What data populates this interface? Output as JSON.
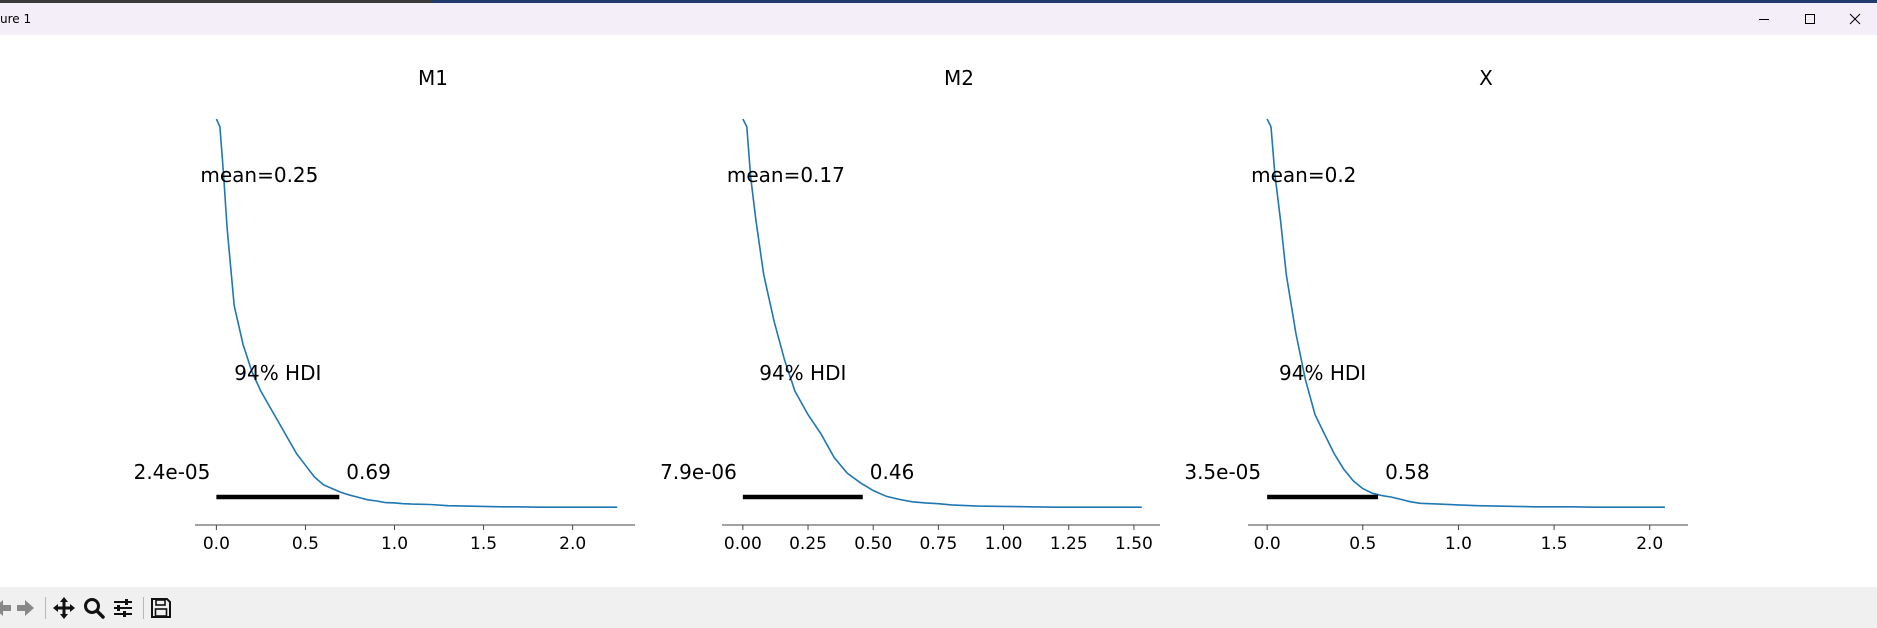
{
  "window": {
    "title": "ure 1",
    "icons": {
      "minimize": "minimize-icon",
      "maximize": "maximize-icon",
      "close": "close-icon"
    }
  },
  "toolbar": {
    "buttons": [
      {
        "name": "back-button",
        "icon": "arrow-left-icon"
      },
      {
        "name": "forward-button",
        "icon": "arrow-right-icon"
      },
      {
        "name": "pan-button",
        "icon": "move-icon"
      },
      {
        "name": "zoom-button",
        "icon": "magnifier-icon"
      },
      {
        "name": "configure-button",
        "icon": "sliders-icon"
      },
      {
        "name": "save-button",
        "icon": "floppy-disk-icon"
      }
    ]
  },
  "colors": {
    "line": "#1f77b4",
    "hdi": "#000000",
    "axis": "#444444"
  },
  "chart_data": [
    {
      "type": "line",
      "title": "M1",
      "xlim": [
        -0.12,
        2.35
      ],
      "ticks": [
        0.0,
        0.5,
        1.0,
        1.5,
        2.0
      ],
      "tick_labels": [
        "0.0",
        "0.5",
        "1.0",
        "1.5",
        "2.0"
      ],
      "mean_label": "mean=0.25",
      "hdi_label": "94% HDI",
      "hdi": [
        0.0,
        0.69
      ],
      "hdi_low_label": "2.4e-05",
      "hdi_high_label": "0.69",
      "x": [
        0.0,
        0.02,
        0.04,
        0.06,
        0.1,
        0.15,
        0.2,
        0.25,
        0.3,
        0.35,
        0.4,
        0.45,
        0.5,
        0.55,
        0.6,
        0.65,
        0.7,
        0.75,
        0.8,
        0.85,
        0.9,
        0.95,
        1.0,
        1.05,
        1.1,
        1.2,
        1.3,
        1.4,
        1.5,
        1.6,
        1.7,
        1.8,
        1.9,
        2.0,
        2.1,
        2.25
      ],
      "y": [
        1.0,
        0.98,
        0.86,
        0.72,
        0.52,
        0.42,
        0.35,
        0.3,
        0.26,
        0.22,
        0.18,
        0.14,
        0.11,
        0.08,
        0.06,
        0.05,
        0.04,
        0.033,
        0.027,
        0.021,
        0.018,
        0.014,
        0.013,
        0.011,
        0.01,
        0.009,
        0.006,
        0.005,
        0.004,
        0.003,
        0.003,
        0.002,
        0.002,
        0.002,
        0.002,
        0.002
      ]
    },
    {
      "type": "line",
      "title": "M2",
      "xlim": [
        -0.08,
        1.6
      ],
      "ticks": [
        0.0,
        0.25,
        0.5,
        0.75,
        1.0,
        1.25,
        1.5
      ],
      "tick_labels": [
        "0.00",
        "0.25",
        "0.50",
        "0.75",
        "1.00",
        "1.25",
        "1.50"
      ],
      "mean_label": "mean=0.17",
      "hdi_label": "94% HDI",
      "hdi": [
        0.0,
        0.46
      ],
      "hdi_low_label": "7.9e-06",
      "hdi_high_label": "0.46",
      "x": [
        0.0,
        0.015,
        0.03,
        0.05,
        0.08,
        0.12,
        0.16,
        0.2,
        0.25,
        0.3,
        0.35,
        0.4,
        0.45,
        0.5,
        0.55,
        0.6,
        0.65,
        0.7,
        0.75,
        0.8,
        0.9,
        1.0,
        1.1,
        1.2,
        1.3,
        1.4,
        1.53
      ],
      "y": [
        1.0,
        0.98,
        0.85,
        0.74,
        0.6,
        0.48,
        0.38,
        0.3,
        0.24,
        0.19,
        0.13,
        0.09,
        0.065,
        0.045,
        0.03,
        0.022,
        0.016,
        0.013,
        0.011,
        0.008,
        0.005,
        0.004,
        0.003,
        0.002,
        0.002,
        0.002,
        0.002
      ]
    },
    {
      "type": "line",
      "title": "X",
      "xlim": [
        -0.1,
        2.2
      ],
      "ticks": [
        0.0,
        0.5,
        1.0,
        1.5,
        2.0
      ],
      "tick_labels": [
        "0.0",
        "0.5",
        "1.0",
        "1.5",
        "2.0"
      ],
      "mean_label": "mean=0.2",
      "hdi_label": "94% HDI",
      "hdi": [
        0.0,
        0.58
      ],
      "hdi_low_label": "3.5e-05",
      "hdi_high_label": "0.58",
      "x": [
        0.0,
        0.02,
        0.04,
        0.07,
        0.1,
        0.15,
        0.2,
        0.25,
        0.3,
        0.35,
        0.4,
        0.45,
        0.5,
        0.55,
        0.6,
        0.65,
        0.7,
        0.75,
        0.8,
        0.9,
        1.0,
        1.1,
        1.2,
        1.3,
        1.4,
        1.5,
        1.6,
        1.7,
        1.8,
        1.9,
        2.08
      ],
      "y": [
        1.0,
        0.98,
        0.86,
        0.74,
        0.6,
        0.45,
        0.33,
        0.24,
        0.19,
        0.14,
        0.1,
        0.07,
        0.05,
        0.038,
        0.032,
        0.028,
        0.022,
        0.016,
        0.012,
        0.01,
        0.008,
        0.006,
        0.005,
        0.004,
        0.003,
        0.003,
        0.003,
        0.002,
        0.002,
        0.002,
        0.002
      ]
    }
  ]
}
